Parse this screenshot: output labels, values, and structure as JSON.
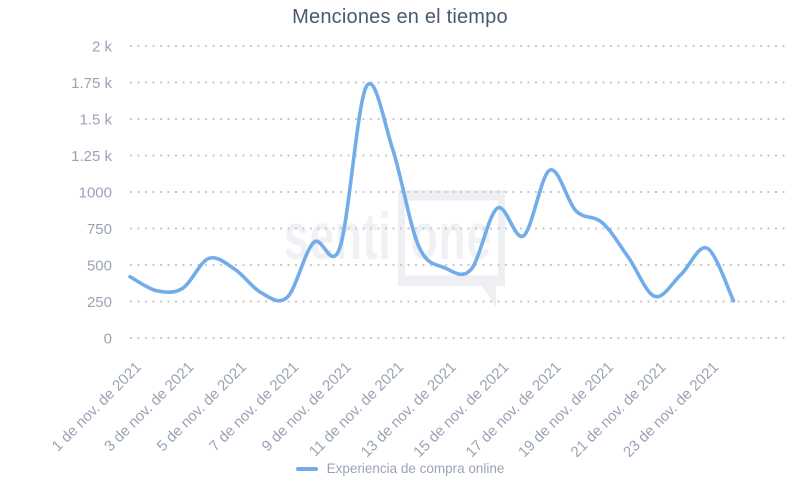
{
  "title": "Menciones en el tiempo",
  "watermark": {
    "prefix": "senti",
    "boxed": "one"
  },
  "legend": {
    "label": "Experiencia de compra online",
    "color": "#73ade9"
  },
  "colors": {
    "line": "#73ade9",
    "title_text": "#49596f",
    "axis_label": "#9aa3b5",
    "gridline": "#c9cacd",
    "watermark": "#f0f1f4",
    "background": "#ffffff"
  },
  "chart_data": {
    "type": "line",
    "title": "Menciones en el tiempo",
    "xlabel": "",
    "ylabel": "",
    "x_unit": "noviembre de 2021 (valores diarios)",
    "x": [
      1,
      2,
      3,
      4,
      5,
      6,
      7,
      8,
      9,
      10,
      11,
      12,
      13,
      14,
      15,
      16,
      17,
      18,
      19,
      20,
      21,
      22,
      23,
      24
    ],
    "series": [
      {
        "name": "Experiencia de compra online",
        "color": "#73ade9",
        "values": [
          420,
          325,
          340,
          545,
          470,
          310,
          280,
          655,
          620,
          1720,
          1300,
          630,
          480,
          470,
          890,
          700,
          1150,
          870,
          790,
          550,
          285,
          435,
          615,
          255
        ]
      }
    ],
    "ylim": [
      0,
      2000
    ],
    "x_domain": [
      1,
      26
    ],
    "y_ticks": [
      {
        "value": 2000,
        "label": "2 k"
      },
      {
        "value": 1750,
        "label": "1.75 k"
      },
      {
        "value": 1500,
        "label": "1.5 k"
      },
      {
        "value": 1250,
        "label": "1.25 k"
      },
      {
        "value": 1000,
        "label": "1000"
      },
      {
        "value": 750,
        "label": "750"
      },
      {
        "value": 500,
        "label": "500"
      },
      {
        "value": 250,
        "label": "250"
      },
      {
        "value": 0,
        "label": "0"
      }
    ],
    "x_ticks": [
      {
        "day": 1,
        "label": "1 de nov. de 2021"
      },
      {
        "day": 3,
        "label": "3 de nov. de 2021"
      },
      {
        "day": 5,
        "label": "5 de nov. de 2021"
      },
      {
        "day": 7,
        "label": "7 de nov. de 2021"
      },
      {
        "day": 9,
        "label": "9 de nov. de 2021"
      },
      {
        "day": 11,
        "label": "11 de nov. de 2021"
      },
      {
        "day": 13,
        "label": "13 de nov. de 2021"
      },
      {
        "day": 15,
        "label": "15 de nov. de 2021"
      },
      {
        "day": 17,
        "label": "17 de nov. de 2021"
      },
      {
        "day": 19,
        "label": "19 de nov. de 2021"
      },
      {
        "day": 21,
        "label": "21 de nov. de 2021"
      },
      {
        "day": 23,
        "label": "23 de nov. de 2021"
      }
    ],
    "grid": "horizontal-dotted",
    "legend_position": "bottom-center"
  }
}
